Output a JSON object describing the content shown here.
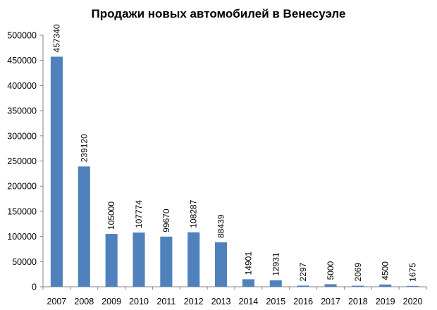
{
  "chart_data": {
    "type": "bar",
    "title": "Продажи новых автомобилей в Венесуэле",
    "xlabel": "",
    "ylabel": "",
    "categories": [
      "2007",
      "2008",
      "2009",
      "2010",
      "2011",
      "2012",
      "2013",
      "2014",
      "2015",
      "2016",
      "2017",
      "2018",
      "2019",
      "2020"
    ],
    "values": [
      457340,
      239120,
      105000,
      107774,
      99670,
      108287,
      88439,
      14901,
      12931,
      2297,
      5000,
      2069,
      4500,
      1675
    ],
    "value_labels": [
      "457340",
      "239120",
      "105000",
      "107774",
      "99670",
      "108287",
      "88439",
      "14901",
      "12931",
      "2297",
      "5000",
      "2069",
      "4500",
      "1675"
    ],
    "ylim": [
      0,
      500000
    ],
    "yticks": [
      "0",
      "50000",
      "100000",
      "150000",
      "200000",
      "250000",
      "300000",
      "350000",
      "400000",
      "450000",
      "500000"
    ],
    "grid": false,
    "legend": "none",
    "colors": {
      "bar": "#4F81BD",
      "axis": "#868686"
    }
  }
}
